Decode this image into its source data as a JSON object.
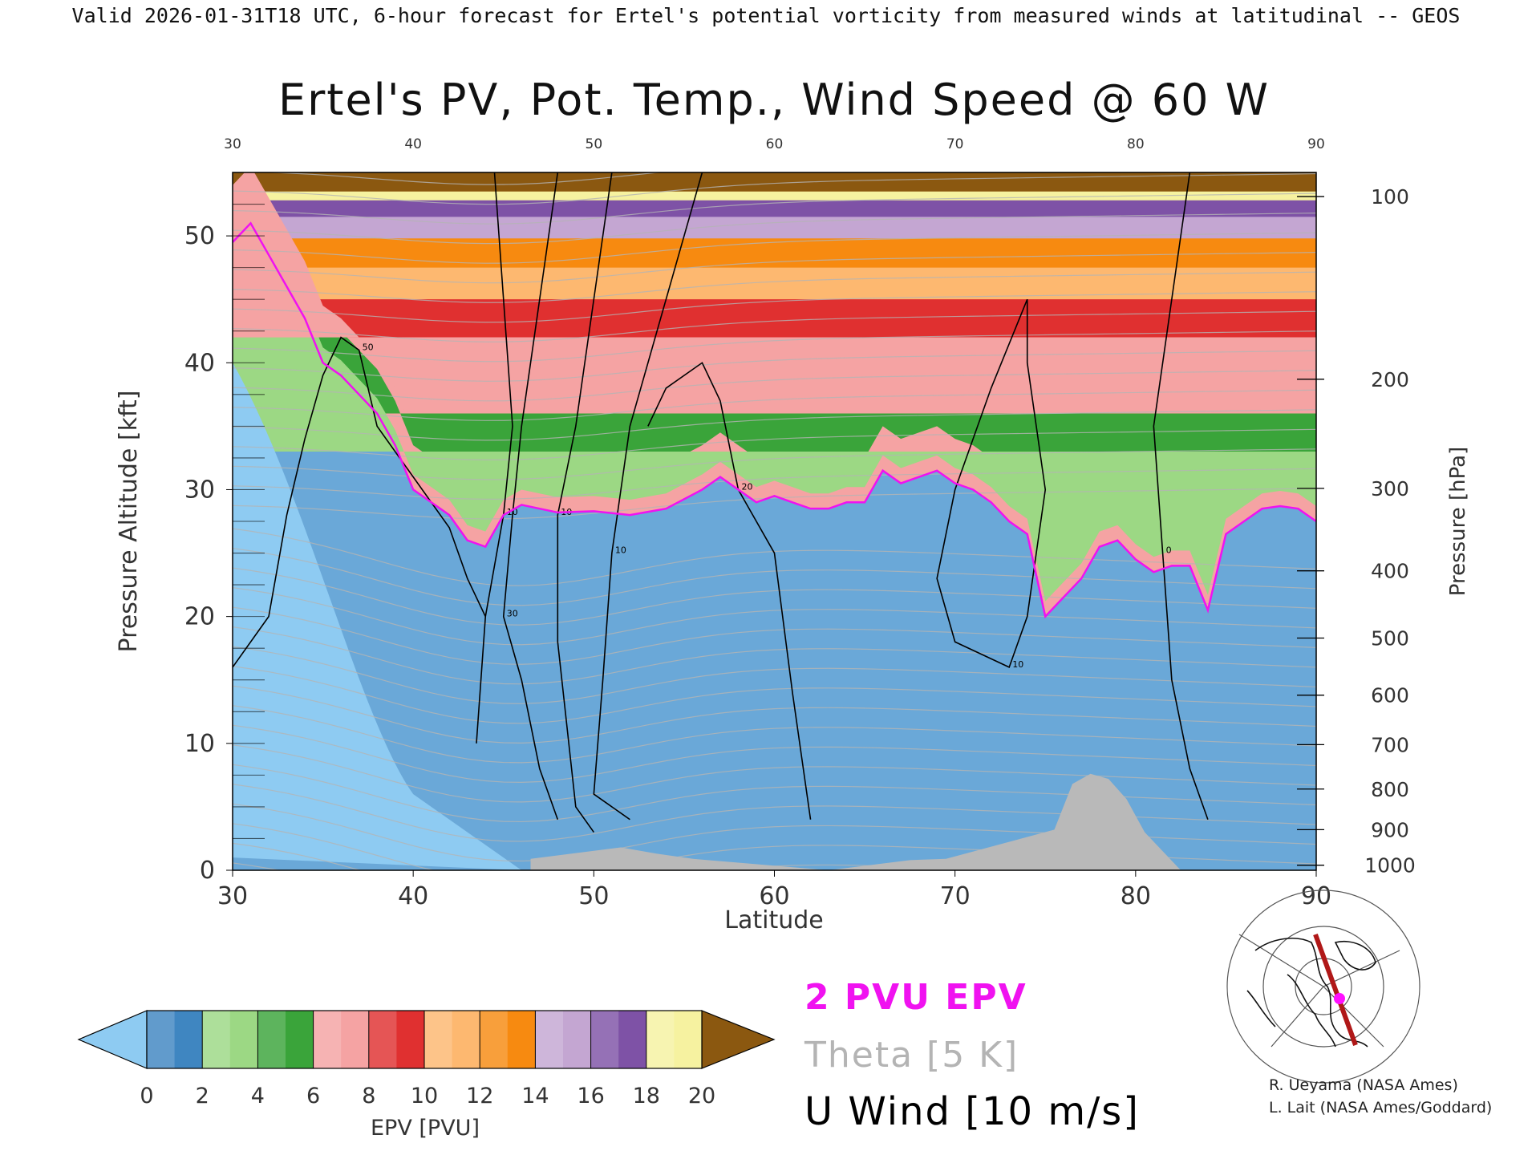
{
  "header": {
    "valid_line": "Valid 2026-01-31T18 UTC, 6-hour forecast for Ertel's potential vorticity from measured winds at latitudinal -- GEOS"
  },
  "credits": [
    "R. Ueyama (NASA Ames)",
    "L. Lait (NASA Ames/Goddard)"
  ],
  "chart_data": {
    "type": "heatmap",
    "title": "Ertel's PV, Pot. Temp., Wind Speed @ 60 W",
    "xlabel": "Latitude",
    "ylabel_left": "Pressure Altitude [kft]",
    "ylabel_right": "Pressure [hPa]",
    "xlim": [
      30,
      90
    ],
    "ylim": [
      0,
      55
    ],
    "x_ticks": [
      "30",
      "40",
      "50",
      "60",
      "70",
      "80",
      "90"
    ],
    "top_x_ticks": [
      "30",
      "40",
      "50",
      "60",
      "70",
      "80",
      "90"
    ],
    "y_ticks": [
      "0",
      "10",
      "20",
      "30",
      "40",
      "50"
    ],
    "pressure_ticks": [
      {
        "label": "100",
        "kft": 53.1
      },
      {
        "label": "200",
        "kft": 38.7
      },
      {
        "label": "300",
        "kft": 30.1
      },
      {
        "label": "400",
        "kft": 23.6
      },
      {
        "label": "500",
        "kft": 18.3
      },
      {
        "label": "600",
        "kft": 13.8
      },
      {
        "label": "700",
        "kft": 9.9
      },
      {
        "label": "800",
        "kft": 6.4
      },
      {
        "label": "900",
        "kft": 3.2
      },
      {
        "label": "1000",
        "kft": 0.4
      }
    ],
    "tropopause_2pvu_kft": [
      [
        30,
        49.5
      ],
      [
        31,
        51.0
      ],
      [
        32,
        48.5
      ],
      [
        33,
        46.0
      ],
      [
        34,
        43.5
      ],
      [
        35,
        40.0
      ],
      [
        36,
        39.0
      ],
      [
        37,
        37.5
      ],
      [
        38,
        36.0
      ],
      [
        39,
        33.5
      ],
      [
        40,
        30.0
      ],
      [
        41,
        29.0
      ],
      [
        42,
        28.0
      ],
      [
        43,
        26.0
      ],
      [
        44,
        25.5
      ],
      [
        45,
        28.0
      ],
      [
        46,
        28.8
      ],
      [
        47,
        28.5
      ],
      [
        48,
        28.2
      ],
      [
        50,
        28.3
      ],
      [
        52,
        28.0
      ],
      [
        54,
        28.5
      ],
      [
        56,
        30.0
      ],
      [
        57,
        31.0
      ],
      [
        58,
        30.0
      ],
      [
        59,
        29.0
      ],
      [
        60,
        29.5
      ],
      [
        61,
        29.0
      ],
      [
        62,
        28.5
      ],
      [
        63,
        28.5
      ],
      [
        64,
        29.0
      ],
      [
        65,
        29.0
      ],
      [
        66,
        31.5
      ],
      [
        67,
        30.5
      ],
      [
        68,
        31.0
      ],
      [
        69,
        31.5
      ],
      [
        70,
        30.5
      ],
      [
        71,
        30.0
      ],
      [
        72,
        29.0
      ],
      [
        73,
        27.5
      ],
      [
        74,
        26.5
      ],
      [
        75,
        20.0
      ],
      [
        76,
        21.5
      ],
      [
        77,
        23.0
      ],
      [
        78,
        25.5
      ],
      [
        79,
        26.0
      ],
      [
        80,
        24.5
      ],
      [
        81,
        23.5
      ],
      [
        82,
        24.0
      ],
      [
        83,
        24.0
      ],
      [
        84,
        20.5
      ],
      [
        85,
        26.5
      ],
      [
        86,
        27.5
      ],
      [
        87,
        28.5
      ],
      [
        88,
        28.7
      ],
      [
        89,
        28.5
      ],
      [
        90,
        27.5
      ]
    ],
    "terrain_kft": [
      [
        46.5,
        0.9
      ],
      [
        51.5,
        1.8
      ],
      [
        53.5,
        1.3
      ],
      [
        55.5,
        0.9
      ],
      [
        63,
        0
      ],
      [
        67.5,
        0.8
      ],
      [
        69.5,
        0.9
      ],
      [
        75.5,
        3.2
      ],
      [
        76.5,
        6.8
      ],
      [
        77.5,
        7.6
      ],
      [
        78.5,
        7.2
      ],
      [
        79.5,
        5.6
      ],
      [
        80.5,
        3.0
      ],
      [
        82.5,
        0
      ]
    ],
    "colorbar": {
      "label": "EPV [PVU]",
      "tick_labels": [
        "0",
        "2",
        "4",
        "6",
        "8",
        "10",
        "12",
        "14",
        "16",
        "18",
        "20"
      ],
      "colors": [
        "#8ecbf2",
        "#3f86c1",
        "#9cd884",
        "#3aa43a",
        "#f5a3a3",
        "#e03030",
        "#fdb870",
        "#f78a10",
        "#c4a6d2",
        "#7e52a6",
        "#f6f2a0",
        "#8b5810"
      ]
    },
    "legend": [
      {
        "label": "2 PVU EPV",
        "color": "#f012f0"
      },
      {
        "label": "Theta [5 K]",
        "color": "#b4b4b4"
      },
      {
        "label": "U Wind [10 m/s]",
        "color": "#000000"
      }
    ],
    "u_wind_contours": [
      {
        "label": "50",
        "path": [
          [
            30,
            16
          ],
          [
            32,
            20
          ],
          [
            33,
            28
          ],
          [
            34,
            34
          ],
          [
            35,
            39
          ],
          [
            36,
            42
          ],
          [
            37,
            41
          ],
          [
            38,
            35
          ],
          [
            40,
            31
          ],
          [
            42,
            27
          ],
          [
            43,
            23
          ],
          [
            44,
            20
          ]
        ]
      },
      {
        "label": "10",
        "path": [
          [
            44.5,
            55
          ],
          [
            45,
            45
          ],
          [
            45.5,
            35
          ],
          [
            45,
            28
          ],
          [
            44,
            20
          ],
          [
            43.5,
            10
          ]
        ]
      },
      {
        "label": "30",
        "path": [
          [
            48,
            55
          ],
          [
            47,
            45
          ],
          [
            46,
            35
          ],
          [
            45.5,
            28
          ],
          [
            45,
            20
          ],
          [
            46,
            15
          ],
          [
            47,
            8
          ],
          [
            48,
            4
          ]
        ]
      },
      {
        "label": "10",
        "path": [
          [
            51,
            55
          ],
          [
            50,
            45
          ],
          [
            49,
            35
          ],
          [
            48,
            28
          ],
          [
            48,
            18
          ],
          [
            49,
            5
          ],
          [
            50,
            3
          ]
        ]
      },
      {
        "label": "10",
        "path": [
          [
            56,
            55
          ],
          [
            54,
            45
          ],
          [
            52,
            35
          ],
          [
            51,
            25
          ],
          [
            50.5,
            15
          ],
          [
            50,
            6
          ],
          [
            52,
            4
          ]
        ]
      },
      {
        "label": "20",
        "path": [
          [
            53,
            35
          ],
          [
            54,
            38
          ],
          [
            56,
            40
          ],
          [
            57,
            37
          ],
          [
            58,
            30
          ],
          [
            60,
            25
          ],
          [
            61,
            14
          ],
          [
            62,
            4
          ]
        ]
      },
      {
        "label": "10",
        "path": [
          [
            74,
            45
          ],
          [
            72,
            38
          ],
          [
            70,
            30
          ],
          [
            69,
            23
          ],
          [
            70,
            18
          ],
          [
            73,
            16
          ],
          [
            74,
            20
          ],
          [
            75,
            30
          ],
          [
            74,
            40
          ],
          [
            74,
            45
          ]
        ]
      },
      {
        "label": "0",
        "path": [
          [
            83,
            55
          ],
          [
            82,
            45
          ],
          [
            81,
            35
          ],
          [
            81.5,
            25
          ],
          [
            82,
            15
          ],
          [
            83,
            8
          ],
          [
            84,
            4
          ]
        ]
      }
    ]
  }
}
